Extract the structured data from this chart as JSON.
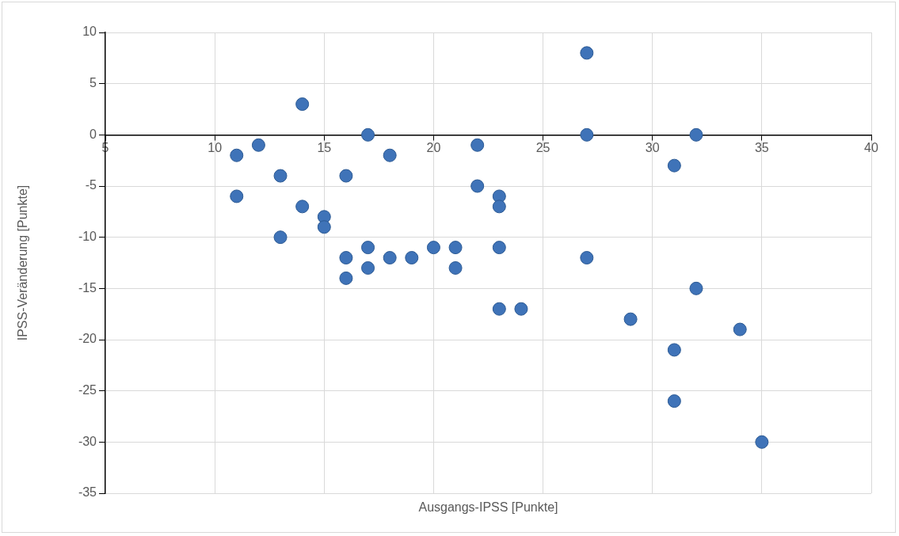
{
  "chart_data": {
    "type": "scatter",
    "xlabel": "Ausgangs-IPSS [Punkte]",
    "ylabel": "IPSS-Veränderung [Punkte]",
    "xlim": [
      5,
      40
    ],
    "xticks": [
      5,
      10,
      15,
      20,
      25,
      30,
      35,
      40
    ],
    "ylim": [
      -35,
      10
    ],
    "yticks": [
      -35,
      -30,
      -25,
      -20,
      -15,
      -10,
      -5,
      0,
      5,
      10
    ],
    "grid": true,
    "legend": false,
    "marker": "circle",
    "series": [
      {
        "color": "#3f73b8",
        "x": [
          11,
          11,
          12,
          13,
          13,
          14,
          14,
          15,
          15,
          16,
          16,
          16,
          17,
          17,
          17,
          18,
          18,
          19,
          20,
          21,
          21,
          22,
          22,
          23,
          23,
          23,
          23,
          24,
          27,
          27,
          27,
          29,
          31,
          31,
          31,
          32,
          32,
          34,
          35
        ],
        "values": [
          -2,
          -6,
          -1,
          -4,
          -10,
          3,
          -7,
          -8,
          -9,
          -4,
          -12,
          -14,
          0,
          -11,
          -13,
          -2,
          -12,
          -12,
          -11,
          -11,
          -13,
          -1,
          -5,
          -6,
          -7,
          -11,
          -17,
          -17,
          8,
          0,
          -12,
          -18,
          -3,
          -21,
          -26,
          0,
          -15,
          -19,
          -30
        ]
      }
    ]
  }
}
